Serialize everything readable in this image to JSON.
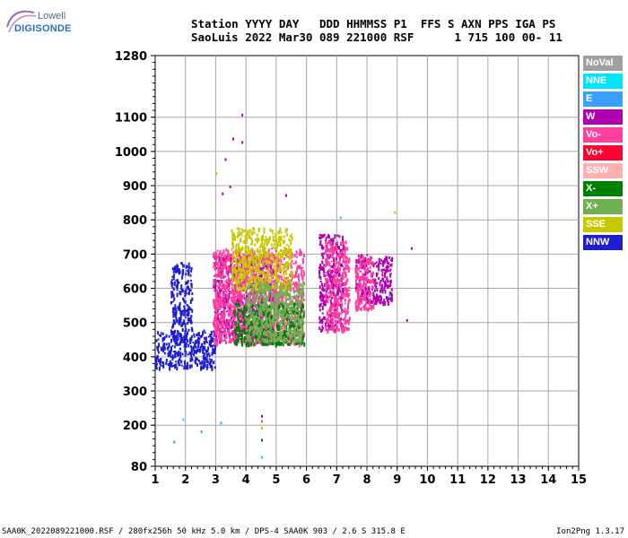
{
  "logo": {
    "top": "Lowell",
    "bottom": "DIGISONDE"
  },
  "header": {
    "line1": "Station YYYY DAY   DDD HHMMSS P1  FFS S AXN PPS IGA PS",
    "line2": "SaoLuis 2022 Mar30 089 221000 RSF      1 715 100 00- 11"
  },
  "legend": [
    {
      "label": "NoVal",
      "color": "#a0a0a0"
    },
    {
      "label": "NNE",
      "color": "#00e5ff"
    },
    {
      "label": "E",
      "color": "#3aa0ff"
    },
    {
      "label": "W",
      "color": "#b000b0"
    },
    {
      "label": "Vo-",
      "color": "#ff40a0"
    },
    {
      "label": "Vo+",
      "color": "#ff0030"
    },
    {
      "label": "SSW",
      "color": "#ffb0b0"
    },
    {
      "label": "X-",
      "color": "#008000"
    },
    {
      "label": "X+",
      "color": "#70b050"
    },
    {
      "label": "SSE",
      "color": "#c8c800"
    },
    {
      "label": "NNW",
      "color": "#1e1ed0"
    }
  ],
  "footer": {
    "left": "SAA0K_2022089221000.RSF / 280fx256h 50 kHz 5.0 km / DPS-4 SAA0K 903 / 2.6 S 315.8 E",
    "right": "Ion2Png 1.3.17"
  },
  "chart_data": {
    "type": "scatter",
    "title": "",
    "xlabel": "",
    "ylabel": "",
    "xlim": [
      1,
      15
    ],
    "ylim": [
      80,
      1280
    ],
    "x_ticks": [
      "1",
      "2",
      "3",
      "4",
      "5",
      "6",
      "7",
      "8",
      "9",
      "10",
      "11",
      "12",
      "13",
      "14",
      "15"
    ],
    "y_ticks": [
      80,
      200,
      300,
      400,
      500,
      600,
      700,
      800,
      900,
      1000,
      1100,
      1280
    ],
    "grid": true,
    "clusters": [
      {
        "name": "NNW",
        "x": [
          1.0,
          3.0
        ],
        "y": [
          370,
          480
        ],
        "color": "#1e1ed0"
      },
      {
        "name": "NNW",
        "x": [
          1.5,
          2.2
        ],
        "y": [
          450,
          680
        ],
        "color": "#1e1ed0"
      },
      {
        "name": "W",
        "x": [
          2.9,
          4.9
        ],
        "y": [
          450,
          700
        ],
        "color": "#b000b0"
      },
      {
        "name": "Vo-",
        "x": [
          2.9,
          5.9
        ],
        "y": [
          440,
          720
        ],
        "color": "#ff40a0"
      },
      {
        "name": "X-",
        "x": [
          3.6,
          5.9
        ],
        "y": [
          440,
          560
        ],
        "color": "#008000"
      },
      {
        "name": "SSE",
        "x": [
          3.5,
          5.5
        ],
        "y": [
          600,
          780
        ],
        "color": "#c8c800"
      },
      {
        "name": "X+",
        "x": [
          4.0,
          5.9
        ],
        "y": [
          450,
          620
        ],
        "color": "#70b050"
      },
      {
        "name": "W",
        "x": [
          6.4,
          7.2
        ],
        "y": [
          480,
          760
        ],
        "color": "#b000b0"
      },
      {
        "name": "Vo-",
        "x": [
          6.6,
          7.4
        ],
        "y": [
          480,
          740
        ],
        "color": "#ff40a0"
      },
      {
        "name": "W",
        "x": [
          7.6,
          8.8
        ],
        "y": [
          560,
          700
        ],
        "color": "#b000b0"
      },
      {
        "name": "Vo-",
        "x": [
          7.6,
          8.2
        ],
        "y": [
          540,
          700
        ],
        "color": "#ff40a0"
      }
    ],
    "sparse_points": [
      {
        "x": 3.0,
        "y": 940,
        "series": "SSE"
      },
      {
        "x": 3.3,
        "y": 980,
        "series": "W"
      },
      {
        "x": 3.55,
        "y": 1040,
        "series": "W"
      },
      {
        "x": 3.85,
        "y": 1110,
        "series": "W"
      },
      {
        "x": 3.85,
        "y": 1030,
        "series": "W"
      },
      {
        "x": 3.2,
        "y": 880,
        "series": "W"
      },
      {
        "x": 3.45,
        "y": 900,
        "series": "W"
      },
      {
        "x": 5.3,
        "y": 875,
        "series": "W"
      },
      {
        "x": 8.9,
        "y": 825,
        "series": "SSE"
      },
      {
        "x": 9.45,
        "y": 720,
        "series": "W"
      },
      {
        "x": 9.3,
        "y": 510,
        "series": "W"
      },
      {
        "x": 8.7,
        "y": 580,
        "series": "NNE"
      },
      {
        "x": 7.1,
        "y": 810,
        "series": "NNE"
      },
      {
        "x": 1.9,
        "y": 220,
        "series": "NNE"
      },
      {
        "x": 1.6,
        "y": 155,
        "series": "E"
      },
      {
        "x": 2.5,
        "y": 185,
        "series": "E"
      },
      {
        "x": 3.15,
        "y": 210,
        "series": "E"
      },
      {
        "x": 4.5,
        "y": 230,
        "series": "W"
      },
      {
        "x": 4.5,
        "y": 215,
        "series": "Vo-"
      },
      {
        "x": 4.5,
        "y": 195,
        "series": "SSE"
      },
      {
        "x": 4.5,
        "y": 160,
        "series": "X-"
      },
      {
        "x": 4.5,
        "y": 110,
        "series": "NNE"
      },
      {
        "x": 1.0,
        "y": 390,
        "series": "NNW"
      },
      {
        "x": 1.5,
        "y": 380,
        "series": "NNW"
      }
    ]
  }
}
